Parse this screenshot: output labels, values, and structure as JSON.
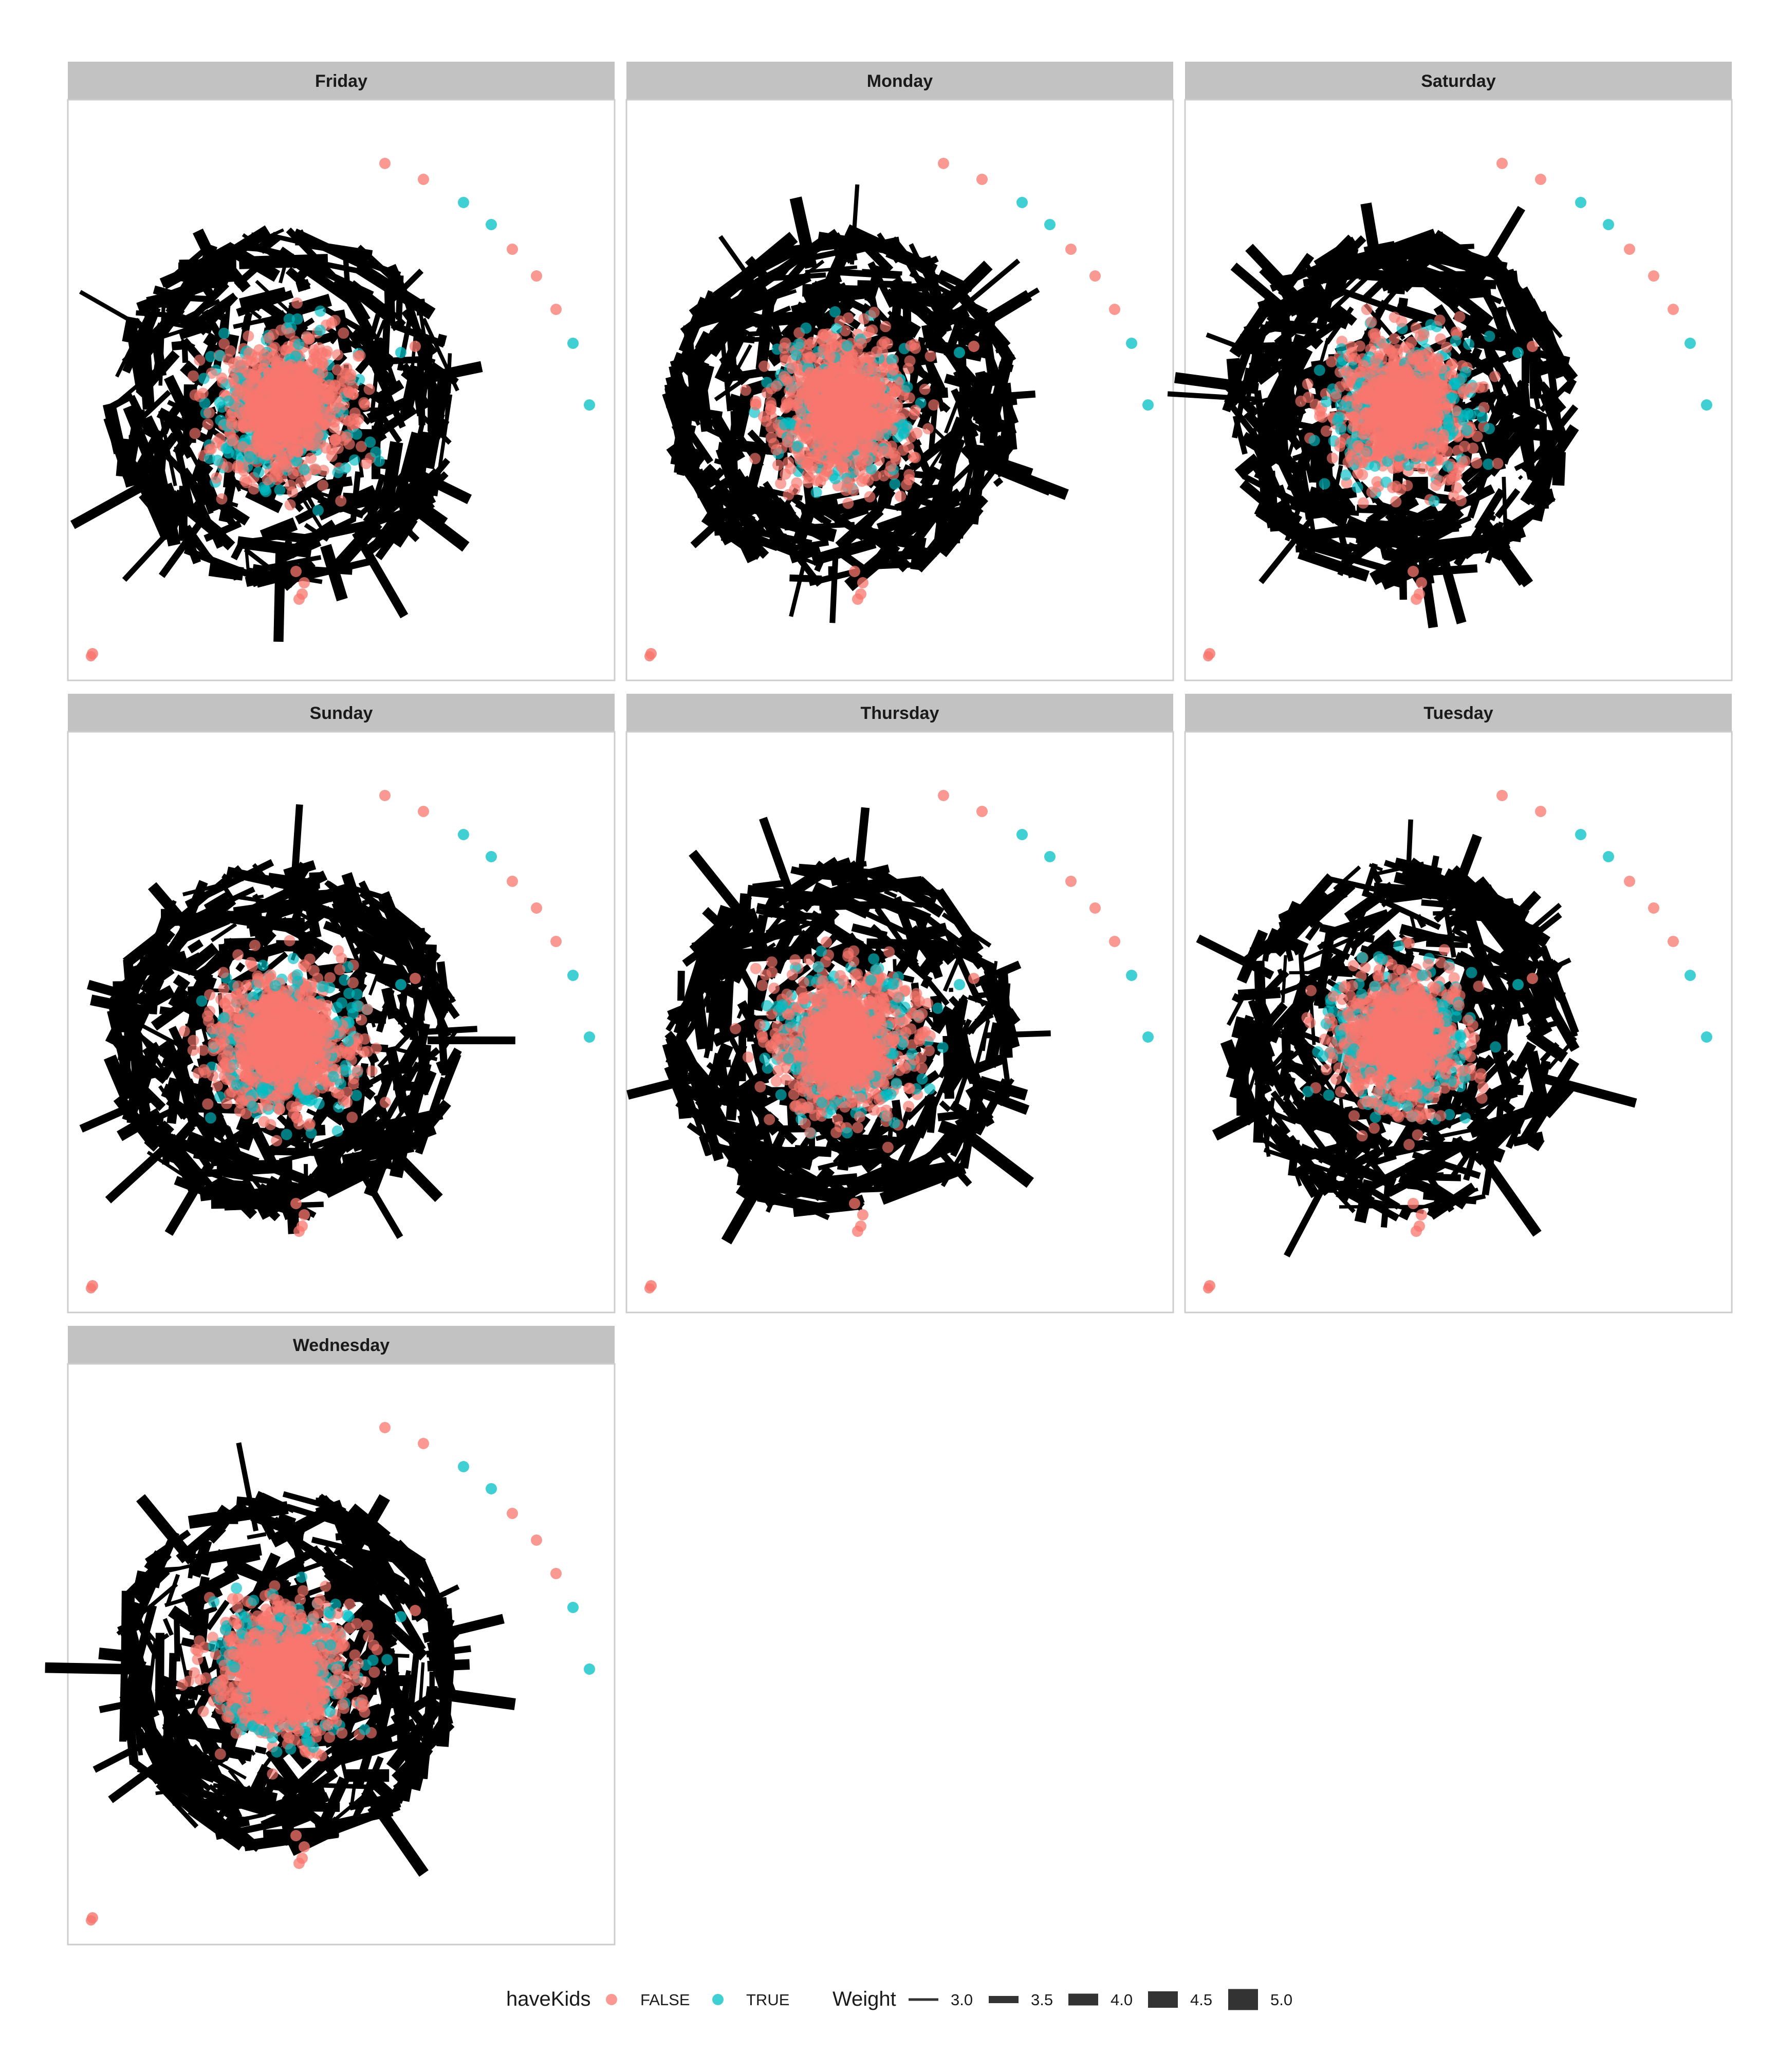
{
  "chart_data": {
    "type": "network",
    "layout": "facet_wrap",
    "facets": [
      "Friday",
      "Monday",
      "Saturday",
      "Sunday",
      "Thursday",
      "Tuesday",
      "Wednesday"
    ],
    "node_color_variable": "haveKids",
    "node_categories": [
      {
        "label": "FALSE",
        "color": "#F8766D"
      },
      {
        "label": "TRUE",
        "color": "#00BFC4"
      }
    ],
    "edge_width_variable": "Weight",
    "edge_color": "#000000",
    "edge_width_levels": [
      3.0,
      3.5,
      4.0,
      4.5,
      5.0
    ],
    "edge_width_labels": [
      "3.0",
      "3.5",
      "4.0",
      "4.5",
      "5.0"
    ],
    "isolated_nodes_arc": [
      "FALSE",
      "FALSE",
      "TRUE",
      "TRUE",
      "FALSE",
      "FALSE",
      "FALSE",
      "TRUE",
      "TRUE"
    ],
    "grid": false
  },
  "colors": {
    "strip_fill": "#C2C2C2",
    "panel_border": "#CCCCCC",
    "false_node": "#F8766D",
    "true_node": "#00BFC4",
    "edge": "#000000"
  },
  "legend": {
    "color_title": "haveKids",
    "width_title": "Weight",
    "position": "bottom"
  }
}
